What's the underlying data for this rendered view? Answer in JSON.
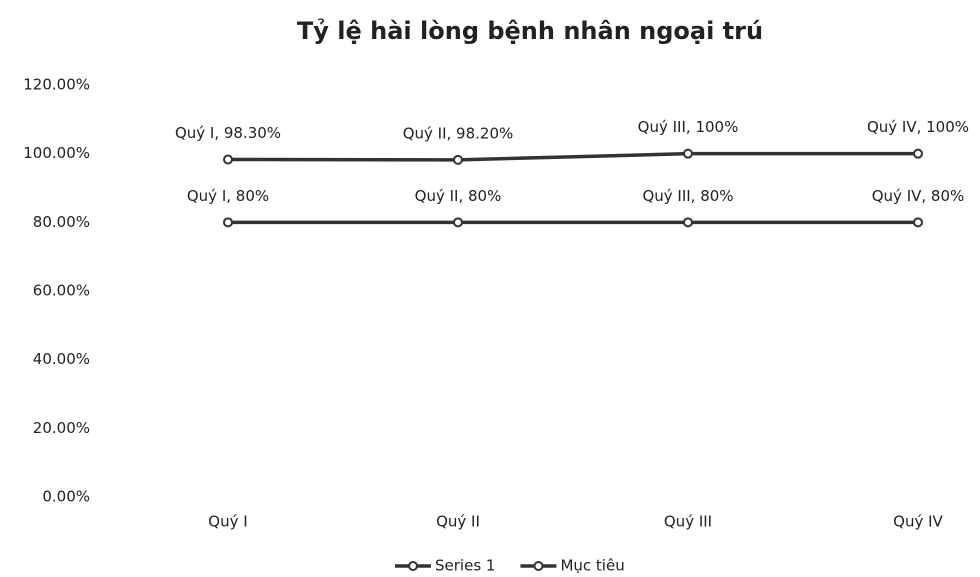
{
  "chart_data": {
    "type": "line",
    "title": "Tỷ lệ hài lòng bệnh nhân ngoại trú",
    "categories": [
      "Quý I",
      "Quý II",
      "Quý III",
      "Quý IV"
    ],
    "series": [
      {
        "name": "Series 1",
        "color": "#333333",
        "values": [
          98.3,
          98.2,
          100,
          100
        ],
        "value_labels": [
          "Quý I, 98.30%",
          "Quý II, 98.20%",
          "Quý III, 100%",
          "Quý IV, 100%"
        ]
      },
      {
        "name": "Mục tiêu",
        "color": "#333333",
        "values": [
          80,
          80,
          80,
          80
        ],
        "value_labels": [
          "Quý I, 80%",
          "Quý II, 80%",
          "Quý III, 80%",
          "Quý IV, 80%"
        ]
      }
    ],
    "ylim": [
      0,
      120
    ],
    "yticks": [
      {
        "value": 0,
        "label": "0.00%"
      },
      {
        "value": 20,
        "label": "20.00%"
      },
      {
        "value": 40,
        "label": "40.00%"
      },
      {
        "value": 60,
        "label": "60.00%"
      },
      {
        "value": 80,
        "label": "80.00%"
      },
      {
        "value": 100,
        "label": "100.00%"
      },
      {
        "value": 120,
        "label": "120.00%"
      }
    ],
    "grid": false,
    "legend": "bottom"
  }
}
